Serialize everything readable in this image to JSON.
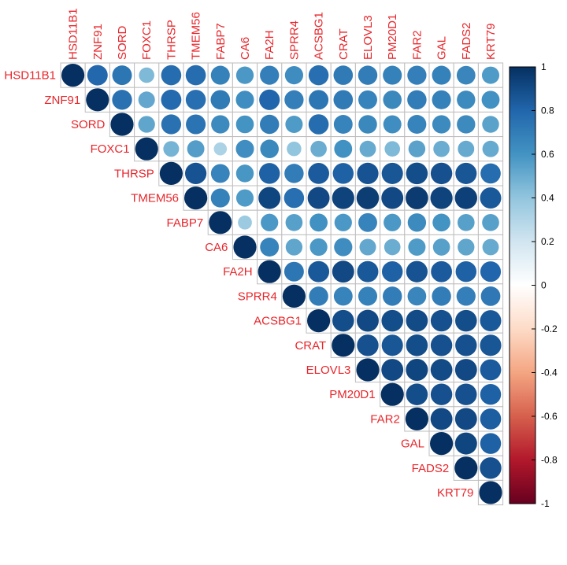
{
  "chart_data": {
    "type": "heatmap",
    "style": "upper-triangle correlation plot with circles",
    "variables": [
      "HSD11B1",
      "ZNF91",
      "SORD",
      "FOXC1",
      "THRSP",
      "TMEM56",
      "FABP7",
      "CA6",
      "FA2H",
      "SPRR4",
      "ACSBG1",
      "CRAT",
      "ELOVL3",
      "PM20D1",
      "FAR2",
      "GAL",
      "FADS2",
      "KRT79"
    ],
    "matrix": [
      [
        1.0,
        0.79,
        0.73,
        0.45,
        0.77,
        0.77,
        0.68,
        0.58,
        0.69,
        0.63,
        0.76,
        0.71,
        0.7,
        0.68,
        0.69,
        0.68,
        0.66,
        0.57
      ],
      [
        null,
        1.0,
        0.75,
        0.52,
        0.78,
        0.76,
        0.71,
        0.62,
        0.8,
        0.69,
        0.73,
        0.71,
        0.67,
        0.65,
        0.7,
        0.68,
        0.64,
        0.61
      ],
      [
        null,
        null,
        1.0,
        0.53,
        0.75,
        0.74,
        0.64,
        0.6,
        0.7,
        0.57,
        0.77,
        0.67,
        0.65,
        0.62,
        0.67,
        0.64,
        0.64,
        0.54
      ],
      [
        null,
        null,
        null,
        1.0,
        0.47,
        0.56,
        0.32,
        0.62,
        0.65,
        0.4,
        0.5,
        0.61,
        0.51,
        0.45,
        0.54,
        0.5,
        0.51,
        0.51
      ],
      [
        null,
        null,
        null,
        null,
        1.0,
        0.87,
        0.67,
        0.59,
        0.82,
        0.7,
        0.84,
        0.82,
        0.87,
        0.86,
        0.89,
        0.88,
        0.86,
        0.77
      ],
      [
        null,
        null,
        null,
        null,
        null,
        1.0,
        0.68,
        0.57,
        0.92,
        0.76,
        0.91,
        0.93,
        0.95,
        0.91,
        0.96,
        0.93,
        0.94,
        0.85
      ],
      [
        null,
        null,
        null,
        null,
        null,
        null,
        1.0,
        0.37,
        0.58,
        0.55,
        0.61,
        0.58,
        0.67,
        0.58,
        0.64,
        0.6,
        0.55,
        0.55
      ],
      [
        null,
        null,
        null,
        null,
        null,
        null,
        null,
        1.0,
        0.67,
        0.53,
        0.58,
        0.63,
        0.52,
        0.5,
        0.57,
        0.55,
        0.53,
        0.51
      ],
      [
        null,
        null,
        null,
        null,
        null,
        null,
        null,
        null,
        1.0,
        0.73,
        0.85,
        0.91,
        0.85,
        0.82,
        0.87,
        0.84,
        0.82,
        0.8
      ],
      [
        null,
        null,
        null,
        null,
        null,
        null,
        null,
        null,
        null,
        1.0,
        0.7,
        0.67,
        0.68,
        0.7,
        0.66,
        0.7,
        0.69,
        0.72
      ],
      [
        null,
        null,
        null,
        null,
        null,
        null,
        null,
        null,
        null,
        null,
        1.0,
        0.89,
        0.91,
        0.89,
        0.9,
        0.88,
        0.89,
        0.85
      ],
      [
        null,
        null,
        null,
        null,
        null,
        null,
        null,
        null,
        null,
        null,
        null,
        1.0,
        0.88,
        0.86,
        0.89,
        0.88,
        0.88,
        0.86
      ],
      [
        null,
        null,
        null,
        null,
        null,
        null,
        null,
        null,
        null,
        null,
        null,
        null,
        1.0,
        0.91,
        0.92,
        0.9,
        0.91,
        0.84
      ],
      [
        null,
        null,
        null,
        null,
        null,
        null,
        null,
        null,
        null,
        null,
        null,
        null,
        null,
        1.0,
        0.89,
        0.88,
        0.88,
        0.82
      ],
      [
        null,
        null,
        null,
        null,
        null,
        null,
        null,
        null,
        null,
        null,
        null,
        null,
        null,
        null,
        1.0,
        0.91,
        0.91,
        0.83
      ],
      [
        null,
        null,
        null,
        null,
        null,
        null,
        null,
        null,
        null,
        null,
        null,
        null,
        null,
        null,
        null,
        1.0,
        0.92,
        0.82
      ],
      [
        null,
        null,
        null,
        null,
        null,
        null,
        null,
        null,
        null,
        null,
        null,
        null,
        null,
        null,
        null,
        null,
        1.0,
        0.88
      ],
      [
        null,
        null,
        null,
        null,
        null,
        null,
        null,
        null,
        null,
        null,
        null,
        null,
        null,
        null,
        null,
        null,
        null,
        1.0
      ]
    ],
    "colorbar": {
      "range": [
        -1,
        1
      ],
      "ticks": [
        "1",
        "0.8",
        "0.6",
        "0.4",
        "0.2",
        "0",
        "-0.2",
        "-0.4",
        "-0.6",
        "-0.8",
        "-1"
      ],
      "colors_low_to_high": [
        "#67001f",
        "#b2182b",
        "#d6604d",
        "#f4a582",
        "#fddbc7",
        "#ffffff",
        "#d1e5f0",
        "#92c5de",
        "#4393c3",
        "#2166ac",
        "#053061"
      ]
    },
    "label_color": "#e8262b",
    "grid_color": "#bebebe"
  }
}
